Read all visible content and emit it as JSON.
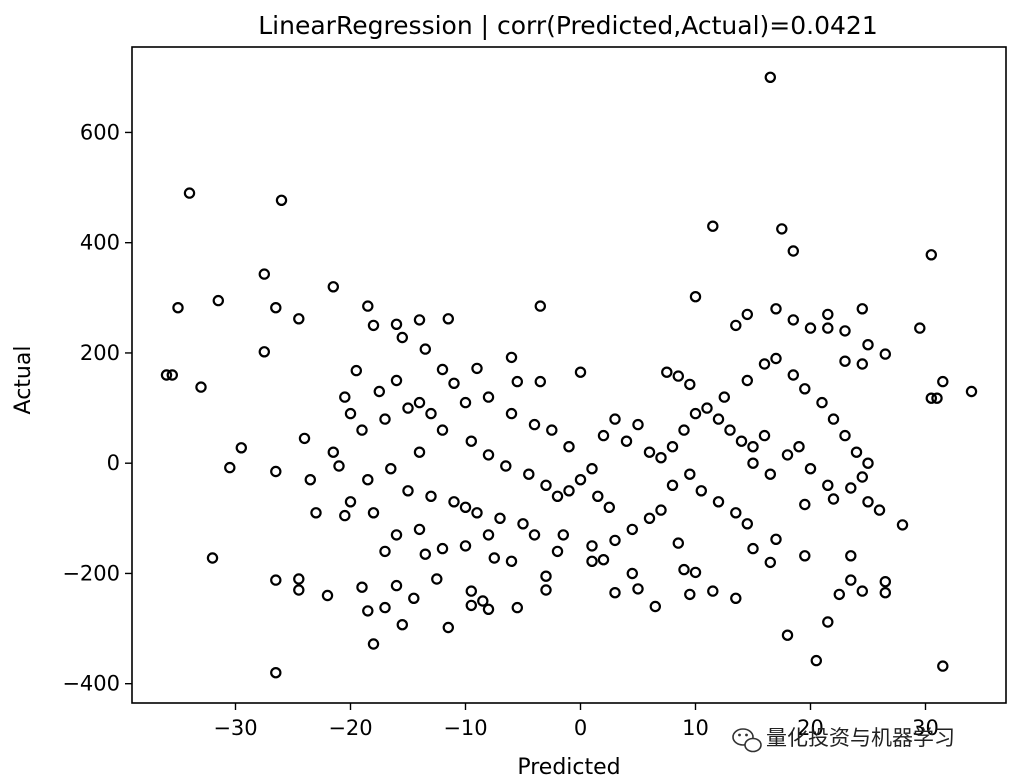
{
  "chart_data": {
    "type": "scatter",
    "title": "LinearRegression | corr(Predicted,Actual)=0.0421",
    "xlabel": "Predicted",
    "ylabel": "Actual",
    "xlim": [
      -39,
      37
    ],
    "ylim": [
      -435,
      755
    ],
    "xticks": [
      -30,
      -20,
      -10,
      0,
      10,
      20,
      30
    ],
    "xtick_labels": [
      "−30",
      "−20",
      "−10",
      "0",
      "10",
      "20",
      "30"
    ],
    "yticks": [
      -400,
      -200,
      0,
      200,
      400,
      600
    ],
    "ytick_labels": [
      "−400",
      "−200",
      "0",
      "200",
      "400",
      "600"
    ],
    "marker": "hollow-circle",
    "marker_color": "#000000",
    "grid": false,
    "legend": "none",
    "points": [
      [
        16.5,
        700
      ],
      [
        -34,
        490
      ],
      [
        -26,
        477
      ],
      [
        11.5,
        430
      ],
      [
        17.5,
        425
      ],
      [
        18.5,
        385
      ],
      [
        30.5,
        378
      ],
      [
        -35,
        282
      ],
      [
        -31.5,
        295
      ],
      [
        -27.5,
        343
      ],
      [
        -26.5,
        282
      ],
      [
        -24.5,
        262
      ],
      [
        -21.5,
        320
      ],
      [
        -18.5,
        285
      ],
      [
        -18,
        250
      ],
      [
        -16,
        252
      ],
      [
        -15.5,
        228
      ],
      [
        -14,
        260
      ],
      [
        -11.5,
        262
      ],
      [
        -13.5,
        207
      ],
      [
        -3.5,
        285
      ],
      [
        10,
        302
      ],
      [
        -36,
        160
      ],
      [
        -35.5,
        160
      ],
      [
        -33,
        138
      ],
      [
        -27.5,
        202
      ],
      [
        -29.5,
        28
      ],
      [
        -30.5,
        -8
      ],
      [
        -26.5,
        -15
      ],
      [
        -24,
        45
      ],
      [
        -23.5,
        -30
      ],
      [
        -23,
        -90
      ],
      [
        -32,
        -172
      ],
      [
        -26.5,
        -212
      ],
      [
        -24.5,
        -210
      ],
      [
        -24.5,
        -230
      ],
      [
        -22,
        -240
      ],
      [
        -26.5,
        -380
      ],
      [
        -21,
        -5
      ],
      [
        -20.5,
        120
      ],
      [
        -20,
        90
      ],
      [
        -19.5,
        168
      ],
      [
        -20.5,
        -95
      ],
      [
        -19,
        -225
      ],
      [
        -18.5,
        -268
      ],
      [
        -18,
        -328
      ],
      [
        -17,
        -262
      ],
      [
        -17,
        -160
      ],
      [
        -16,
        -222
      ],
      [
        -15.5,
        -293
      ],
      [
        -14.5,
        -245
      ],
      [
        -13.5,
        -165
      ],
      [
        -12.5,
        -210
      ],
      [
        -11.5,
        -298
      ],
      [
        -9.5,
        -258
      ],
      [
        -9.5,
        -232
      ],
      [
        -8.5,
        -250
      ],
      [
        -8,
        -265
      ],
      [
        -7.5,
        -172
      ],
      [
        -6,
        -178
      ],
      [
        -5.5,
        -262
      ],
      [
        -3,
        -205
      ],
      [
        -3,
        -230
      ],
      [
        -9,
        172
      ],
      [
        -6,
        192
      ],
      [
        -5.5,
        148
      ],
      [
        -3.5,
        148
      ],
      [
        0,
        165
      ],
      [
        -12,
        170
      ],
      [
        -11,
        145
      ],
      [
        -16,
        150
      ],
      [
        -17.5,
        130
      ],
      [
        -14,
        110
      ],
      [
        -13,
        90
      ],
      [
        -12,
        60
      ],
      [
        -14,
        20
      ],
      [
        -16.5,
        -10
      ],
      [
        -18.5,
        -30
      ],
      [
        -15,
        -50
      ],
      [
        -13,
        -60
      ],
      [
        -11,
        -70
      ],
      [
        -10,
        -80
      ],
      [
        -9,
        -90
      ],
      [
        -7,
        -100
      ],
      [
        -5,
        -110
      ],
      [
        -4,
        -130
      ],
      [
        -8,
        -130
      ],
      [
        -10,
        -150
      ],
      [
        -12,
        -155
      ],
      [
        -14,
        -120
      ],
      [
        -16,
        -130
      ],
      [
        -18,
        -90
      ],
      [
        -20,
        -70
      ],
      [
        -21.5,
        20
      ],
      [
        -19,
        60
      ],
      [
        -17,
        80
      ],
      [
        -15,
        100
      ],
      [
        -10,
        110
      ],
      [
        -8,
        120
      ],
      [
        -6,
        90
      ],
      [
        -4,
        70
      ],
      [
        -2.5,
        60
      ],
      [
        -1,
        30
      ],
      [
        1,
        -10
      ],
      [
        2,
        50
      ],
      [
        3,
        80
      ],
      [
        4,
        40
      ],
      [
        5,
        70
      ],
      [
        6,
        20
      ],
      [
        7,
        10
      ],
      [
        8,
        30
      ],
      [
        9,
        60
      ],
      [
        10,
        90
      ],
      [
        11,
        100
      ],
      [
        12,
        80
      ],
      [
        13,
        60
      ],
      [
        14,
        40
      ],
      [
        15,
        30
      ],
      [
        16,
        50
      ],
      [
        12.5,
        120
      ],
      [
        14.5,
        150
      ],
      [
        16,
        180
      ],
      [
        17,
        190
      ],
      [
        18.5,
        160
      ],
      [
        19.5,
        135
      ],
      [
        21,
        110
      ],
      [
        22,
        80
      ],
      [
        23,
        50
      ],
      [
        24,
        20
      ],
      [
        25,
        0
      ],
      [
        21.5,
        270
      ],
      [
        23,
        240
      ],
      [
        24.5,
        280
      ],
      [
        25,
        215
      ],
      [
        26.5,
        198
      ],
      [
        29.5,
        245
      ],
      [
        30.5,
        118
      ],
      [
        31.5,
        148
      ],
      [
        31,
        118
      ],
      [
        34,
        130
      ],
      [
        23,
        185
      ],
      [
        24.5,
        180
      ],
      [
        21.5,
        245
      ],
      [
        20,
        245
      ],
      [
        8.5,
        158
      ],
      [
        9.5,
        143
      ],
      [
        7.5,
        165
      ],
      [
        13.5,
        250
      ],
      [
        14.5,
        270
      ],
      [
        17,
        280
      ],
      [
        18.5,
        260
      ],
      [
        19,
        30
      ],
      [
        20,
        -10
      ],
      [
        21.5,
        -40
      ],
      [
        22,
        -65
      ],
      [
        23.5,
        -45
      ],
      [
        24.5,
        -25
      ],
      [
        25,
        -70
      ],
      [
        26,
        -85
      ],
      [
        28,
        -112
      ],
      [
        24.5,
        -232
      ],
      [
        26.5,
        -235
      ],
      [
        26.5,
        -215
      ],
      [
        31.5,
        -368
      ],
      [
        20.5,
        -358
      ],
      [
        18,
        -312
      ],
      [
        21.5,
        -288
      ],
      [
        22.5,
        -238
      ],
      [
        23.5,
        -212
      ],
      [
        23.5,
        -168
      ],
      [
        19.5,
        -168
      ],
      [
        17,
        -138
      ],
      [
        16.5,
        -180
      ],
      [
        15,
        -155
      ],
      [
        14.5,
        -110
      ],
      [
        13.5,
        -90
      ],
      [
        12,
        -70
      ],
      [
        10.5,
        -50
      ],
      [
        9.5,
        -20
      ],
      [
        8,
        -40
      ],
      [
        7,
        -85
      ],
      [
        6,
        -100
      ],
      [
        4.5,
        -120
      ],
      [
        3,
        -140
      ],
      [
        2,
        -175
      ],
      [
        1,
        -150
      ],
      [
        2.5,
        -80
      ],
      [
        1.5,
        -60
      ],
      [
        0,
        -30
      ],
      [
        -1,
        -50
      ],
      [
        -2,
        -60
      ],
      [
        -3,
        -40
      ],
      [
        -4.5,
        -20
      ],
      [
        -6.5,
        -5
      ],
      [
        -8,
        15
      ],
      [
        -9.5,
        40
      ],
      [
        8.5,
        -145
      ],
      [
        9,
        -193
      ],
      [
        10,
        -198
      ],
      [
        11.5,
        -232
      ],
      [
        13.5,
        -245
      ],
      [
        9.5,
        -238
      ],
      [
        5,
        -228
      ],
      [
        3,
        -235
      ],
      [
        1,
        -178
      ],
      [
        -2,
        -160
      ],
      [
        -1.5,
        -130
      ],
      [
        4.5,
        -200
      ],
      [
        6.5,
        -260
      ],
      [
        15,
        0
      ],
      [
        16.5,
        -20
      ],
      [
        18,
        15
      ],
      [
        19.5,
        -75
      ]
    ]
  },
  "watermark": {
    "icon": "wechat-icon",
    "text": "量化投资与机器学习"
  }
}
